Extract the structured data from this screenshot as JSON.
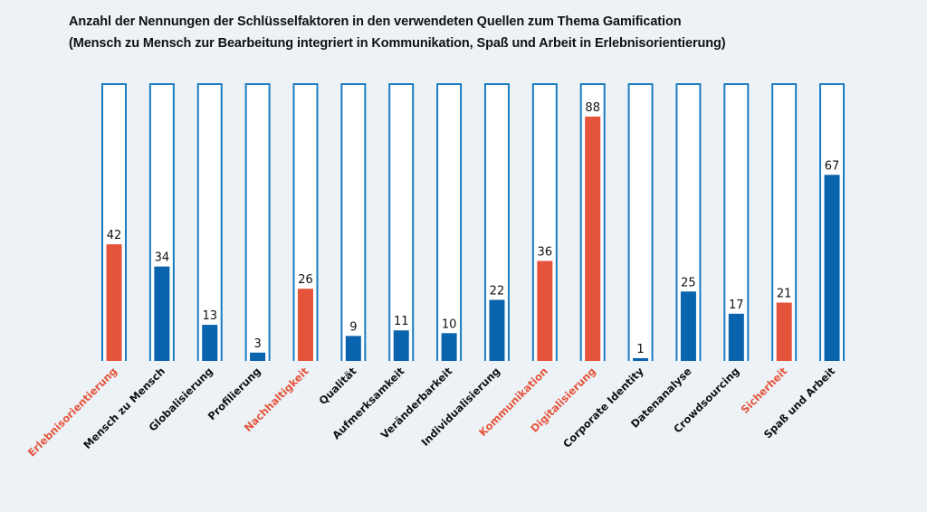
{
  "chart_data": {
    "type": "bar",
    "title": "Anzahl der Nennungen der Schlüsselfaktoren in den verwendeten Quellen zum Thema Gamification",
    "subtitle": "(Mensch zu Mensch zur Bearbeitung integriert in Kommunikation, Spaß und Arbeit in Erlebnisorientierung)",
    "xlabel": "",
    "ylabel": "",
    "ylim": [
      0,
      100
    ],
    "grid": false,
    "legend": "none",
    "categories": [
      "Erlebnisorientierung",
      "Mensch zu Mensch",
      "Globalisierung",
      "Profilierung",
      "Nachhaltigkeit",
      "Qualität",
      "Aufmerksamkeit",
      "Veränderbarkeit",
      "Individualisierung",
      "Kommunikation",
      "Digitalisierung",
      "Corporate Identity",
      "Datenanalyse",
      "Crowdsourcing",
      "Sicherheit",
      "Spaß und Arbeit"
    ],
    "values": [
      42,
      34,
      13,
      3,
      26,
      9,
      11,
      10,
      22,
      36,
      88,
      1,
      25,
      17,
      21,
      67
    ],
    "highlighted": [
      true,
      false,
      false,
      false,
      true,
      false,
      false,
      false,
      false,
      true,
      true,
      false,
      false,
      false,
      true,
      false
    ],
    "colors": {
      "highlight": "#e5533a",
      "normal": "#0a63ad",
      "column_outline": "#1a7bbf",
      "column_fill": "#ffffff",
      "label_normal": "#111111",
      "label_highlight": "#e5533a"
    }
  }
}
